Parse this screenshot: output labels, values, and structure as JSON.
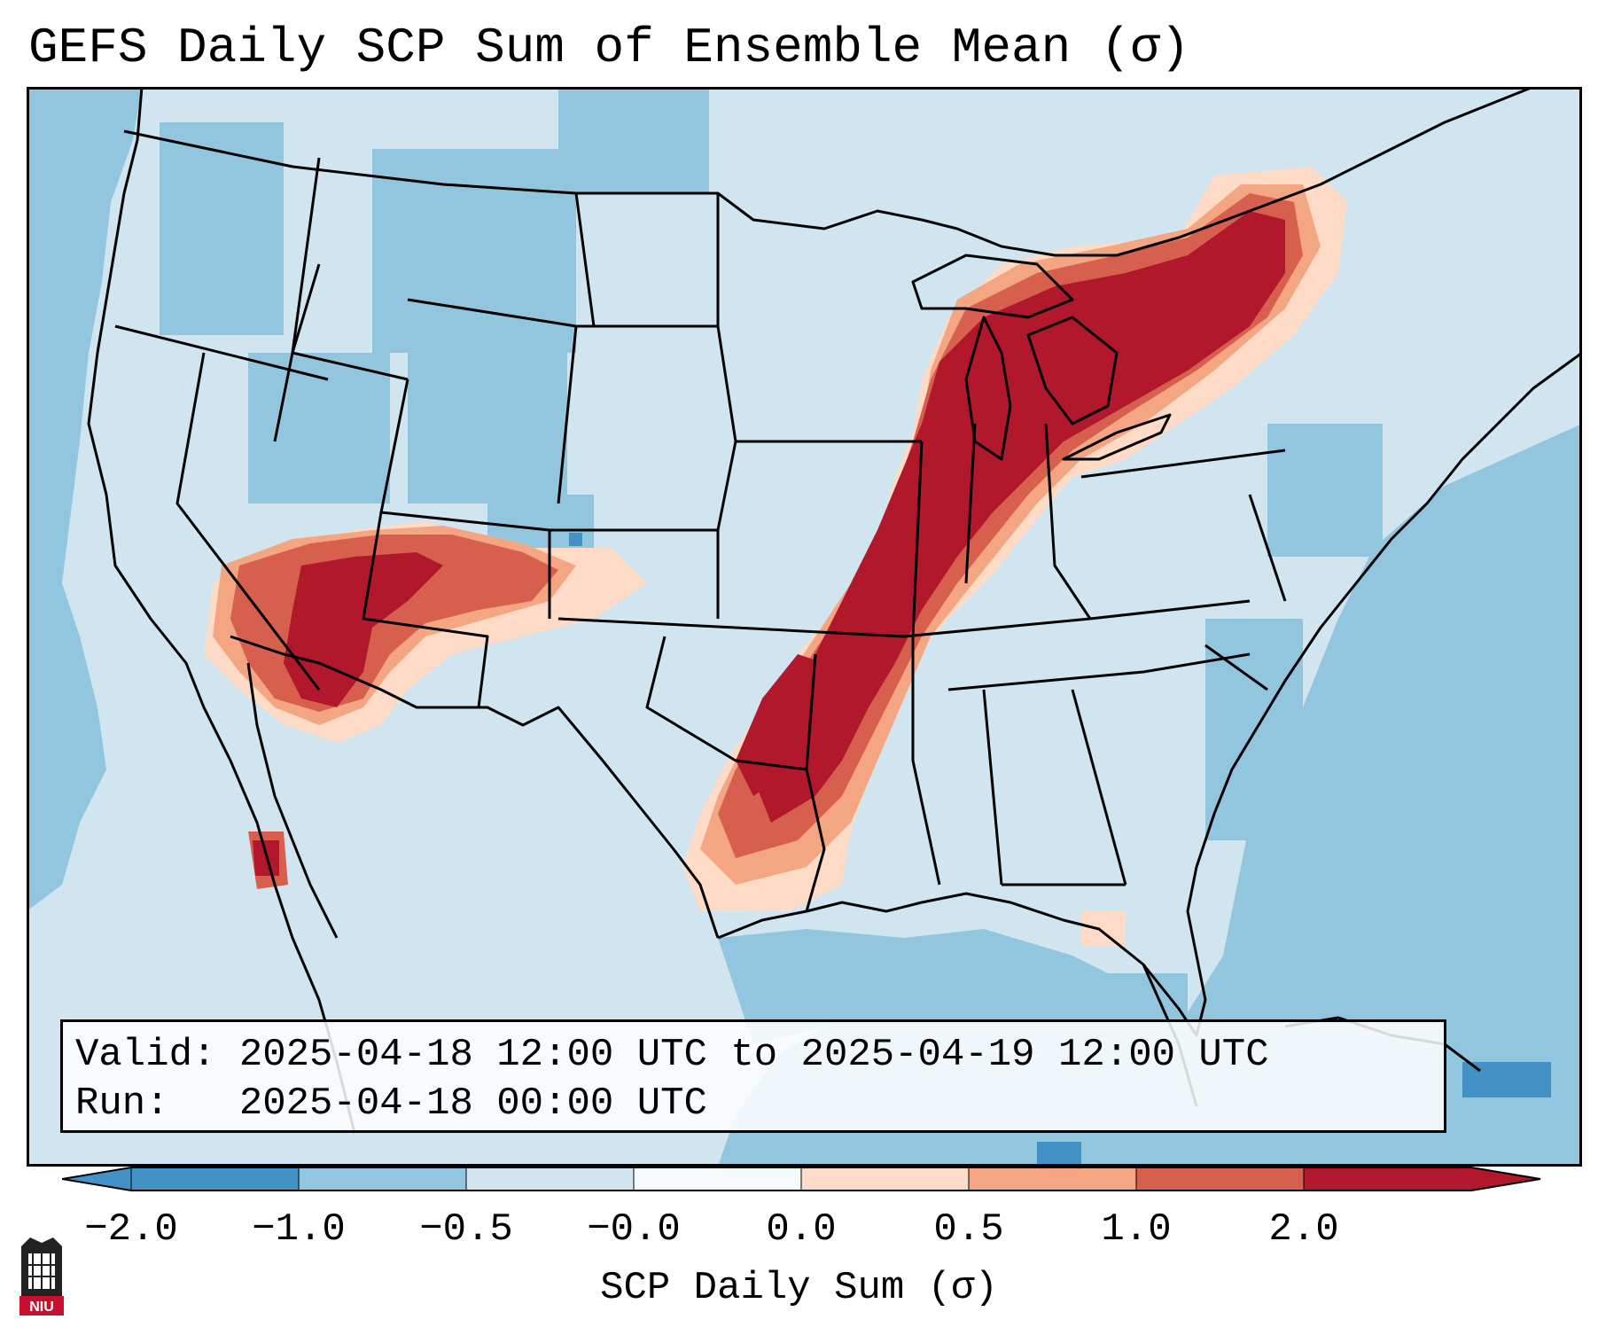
{
  "title": "GEFS Daily SCP Sum of Ensemble Mean (σ)",
  "info": {
    "valid": "Valid: 2025-04-18 12:00 UTC to 2025-04-19 12:00 UTC",
    "run": "Run:   2025-04-18 00:00 UTC"
  },
  "colorbar": {
    "label": "SCP Daily Sum (σ)",
    "ticks": [
      "−2.0",
      "−1.0",
      "−0.5",
      "−0.0",
      "0.0",
      "0.5",
      "1.0",
      "2.0"
    ],
    "colors": [
      "#4292c6",
      "#92c5de",
      "#d1e5f0",
      "#f4f9fc",
      "#fddbc7",
      "#f4a582",
      "#d6604d",
      "#b2182b"
    ]
  },
  "map": {
    "ocean_color": "#92c5de",
    "land_color": "#d1e5f0",
    "high_color": "#b2182b",
    "mid_color": "#d6604d",
    "low_color": "#f4a582",
    "faint_color": "#fddbc7",
    "deep_blue_color": "#4292c6"
  },
  "logo": {
    "text": "NIU"
  }
}
